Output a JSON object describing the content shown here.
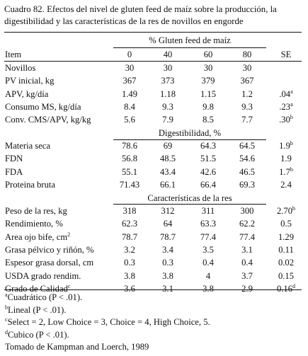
{
  "caption": "Cuadro 82. Efectos del nivel de gluten feed de maíz sobre la producción, la digestibilidad y las características de la res de novillos en engorde",
  "header": {
    "group_title": "% Gluten feed de maíz",
    "item_label": "Item",
    "levels": [
      "0",
      "40",
      "60",
      "80"
    ],
    "se_label": "SE"
  },
  "sections": [
    {
      "title": "",
      "rows": [
        {
          "label": "Novillos",
          "values": [
            "30",
            "30",
            "30",
            "30"
          ],
          "se": "",
          "se_sup": ""
        },
        {
          "label": "PV inicial, kg",
          "values": [
            "367",
            "373",
            "379",
            "367"
          ],
          "se": "",
          "se_sup": ""
        },
        {
          "label": "APV, kg/día",
          "values": [
            "1.49",
            "1.18",
            "1.15",
            "1.2"
          ],
          "se": ".04",
          "se_sup": "a"
        },
        {
          "label": "Consumo MS, kg/día",
          "values": [
            "8.4",
            "9.3",
            "9.8",
            "9.3"
          ],
          "se": ".23",
          "se_sup": "a"
        },
        {
          "label": "Conv. CMS/APV, kg/kg",
          "values": [
            "5.6",
            "7.9",
            "8.5",
            "7.7"
          ],
          "se": ".30",
          "se_sup": "b"
        }
      ]
    },
    {
      "title": "Digestibilidad, %",
      "rows": [
        {
          "label": "Materia seca",
          "values": [
            "78.6",
            "69",
            "64.3",
            "64.5"
          ],
          "se": "1.9",
          "se_sup": "b"
        },
        {
          "label": "FDN",
          "values": [
            "56.8",
            "48.5",
            "51.5",
            "54.6"
          ],
          "se": "1.9",
          "se_sup": ""
        },
        {
          "label": "FDA",
          "values": [
            "55.1",
            "43.4",
            "42.6",
            "46.5"
          ],
          "se": "1.7",
          "se_sup": "b"
        },
        {
          "label": "Proteina bruta",
          "values": [
            "71.43",
            "66.1",
            "66.4",
            "69.3"
          ],
          "se": "2.4",
          "se_sup": ""
        }
      ]
    },
    {
      "title": "Características de la res",
      "rows": [
        {
          "label": "Peso de la res, kg",
          "values": [
            "318",
            "312",
            "311",
            "300"
          ],
          "se": "2.70",
          "se_sup": "b"
        },
        {
          "label": "Rendimiento, %",
          "values": [
            "62.3",
            "64",
            "63.3",
            "62.2"
          ],
          "se": "0.5",
          "se_sup": ""
        },
        {
          "label": "Area ojo bife, cm",
          "label_sup": "2",
          "values": [
            "78.7",
            "78.7",
            "77.4",
            "77.4"
          ],
          "se": "1.29",
          "se_sup": ""
        },
        {
          "label": "Grasa pélvico y riñón, %",
          "values": [
            "3.2",
            "3.4",
            "3.5",
            "3.1"
          ],
          "se": "0.11",
          "se_sup": ""
        },
        {
          "label": "Espesor grasa dorsal, cm",
          "values": [
            "0.3",
            "0.3",
            "0.4",
            "0.4"
          ],
          "se": "0.02",
          "se_sup": ""
        },
        {
          "label": "USDA grado rendim.",
          "values": [
            "3.8",
            "3.8",
            "4",
            "3.7"
          ],
          "se": "0.15",
          "se_sup": ""
        },
        {
          "label": "Grado de Calidad",
          "label_sup": "c",
          "values": [
            "3.6",
            "3.1",
            "3.8",
            "2.9"
          ],
          "se": "0.16",
          "se_sup": "d"
        }
      ]
    }
  ],
  "footnotes": [
    {
      "mark": "a",
      "text": "Cuadrático (P < .01)."
    },
    {
      "mark": "b",
      "text": "Lineal (P < .01)."
    },
    {
      "mark": "c",
      "text": "Select = 2, Low Choice = 3, Choice = 4, High Choice, 5."
    },
    {
      "mark": "d",
      "text": "Cubico (P < .01)."
    }
  ],
  "source": "Tomado de Kampman and Loerch, 1989"
}
